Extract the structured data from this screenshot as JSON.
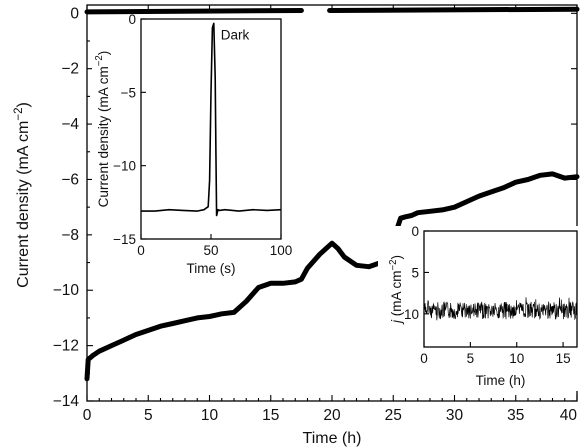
{
  "chart_data": [
    {
      "id": "main",
      "type": "line",
      "xlabel": "Time (h)",
      "ylabel": "Current density (mA cm⁻²)",
      "xlim": [
        0,
        40
      ],
      "ylim": [
        -14,
        0.3
      ],
      "xticks": [
        0,
        5,
        10,
        15,
        20,
        25,
        30,
        35,
        40
      ],
      "xtick_labels": [
        "0",
        "5",
        "10",
        "15",
        "20",
        "25",
        "30",
        "35",
        "40"
      ],
      "yticks": [
        0,
        -2,
        -4,
        -6,
        -8,
        -10,
        -12,
        -14
      ],
      "ytick_labels": [
        "0",
        "−2",
        "−4",
        "−6",
        "−8",
        "−10",
        "−12",
        "−14"
      ],
      "grid": false,
      "series": [
        {
          "role": "photocurrent",
          "x": [
            0,
            0.1,
            0.5,
            1,
            2,
            3,
            4,
            5,
            6,
            7,
            8,
            9,
            10,
            10.5,
            11,
            12,
            13,
            14,
            15,
            16,
            17,
            17.5,
            18,
            19,
            20,
            20.5,
            21,
            22,
            23,
            24,
            25,
            25.3,
            25.6,
            26,
            26.5,
            27,
            28,
            29,
            30,
            31,
            32,
            33,
            34,
            35,
            36,
            37,
            38,
            39,
            40
          ],
          "y": [
            -13.2,
            -12.5,
            -12.35,
            -12.2,
            -12.0,
            -11.8,
            -11.6,
            -11.45,
            -11.3,
            -11.2,
            -11.1,
            -11.0,
            -10.95,
            -10.9,
            -10.85,
            -10.8,
            -10.4,
            -9.9,
            -9.75,
            -9.75,
            -9.7,
            -9.6,
            -9.2,
            -8.7,
            -8.3,
            -8.5,
            -8.8,
            -9.1,
            -9.15,
            -9.0,
            -8.9,
            -7.8,
            -7.4,
            -7.35,
            -7.3,
            -7.2,
            -7.15,
            -7.1,
            -7.0,
            -6.8,
            -6.6,
            -6.45,
            -6.3,
            -6.1,
            -6.0,
            -5.85,
            -5.8,
            -5.95,
            -5.9
          ]
        },
        {
          "role": "dark current",
          "segments": [
            {
              "x": [
                0,
                17.5
              ],
              "y": [
                0.05,
                0.1
              ]
            },
            {
              "x": [
                19.8,
                40
              ],
              "y": [
                0.1,
                0.15
              ]
            }
          ]
        }
      ]
    },
    {
      "id": "inset-left",
      "type": "line",
      "annotation": "Dark",
      "xlabel": "Time (s)",
      "ylabel": "Current density (mA cm⁻²)",
      "xlim": [
        0,
        100
      ],
      "ylim": [
        -15,
        0
      ],
      "xticks": [
        0,
        50,
        100
      ],
      "xtick_labels": [
        "0",
        "50",
        "100"
      ],
      "yticks": [
        0,
        -5,
        -10,
        -15
      ],
      "ytick_labels": [
        "0",
        "−5",
        "−10",
        "−15"
      ],
      "series": [
        {
          "x": [
            0,
            10,
            20,
            30,
            40,
            45,
            48,
            49,
            50,
            51,
            52,
            53,
            53.5,
            54,
            55,
            56,
            60,
            70,
            80,
            90,
            100
          ],
          "y": [
            -13.1,
            -13.1,
            -13.0,
            -13.05,
            -13.1,
            -13.0,
            -12.8,
            -11.0,
            -5.0,
            -0.6,
            -0.3,
            -4.0,
            -9.0,
            -13.4,
            -13.0,
            -13.05,
            -13.0,
            -13.1,
            -13.0,
            -13.05,
            -13.0
          ]
        }
      ]
    },
    {
      "id": "inset-right",
      "type": "line",
      "xlabel": "Time (h)",
      "ylabel": "j (mA cm⁻²)",
      "xlim": [
        0,
        16.5
      ],
      "ylim": [
        0,
        14
      ],
      "y_reversed": true,
      "xticks": [
        0,
        5,
        10,
        15
      ],
      "xtick_labels": [
        "0",
        "5",
        "10",
        "15"
      ],
      "yticks": [
        0,
        5,
        10
      ],
      "ytick_labels": [
        "0",
        "5",
        "10"
      ],
      "series": [
        {
          "x_range": [
            0,
            16.5
          ],
          "mean_y": 9.6,
          "noise_band": [
            8.0,
            11.0
          ]
        }
      ]
    }
  ]
}
